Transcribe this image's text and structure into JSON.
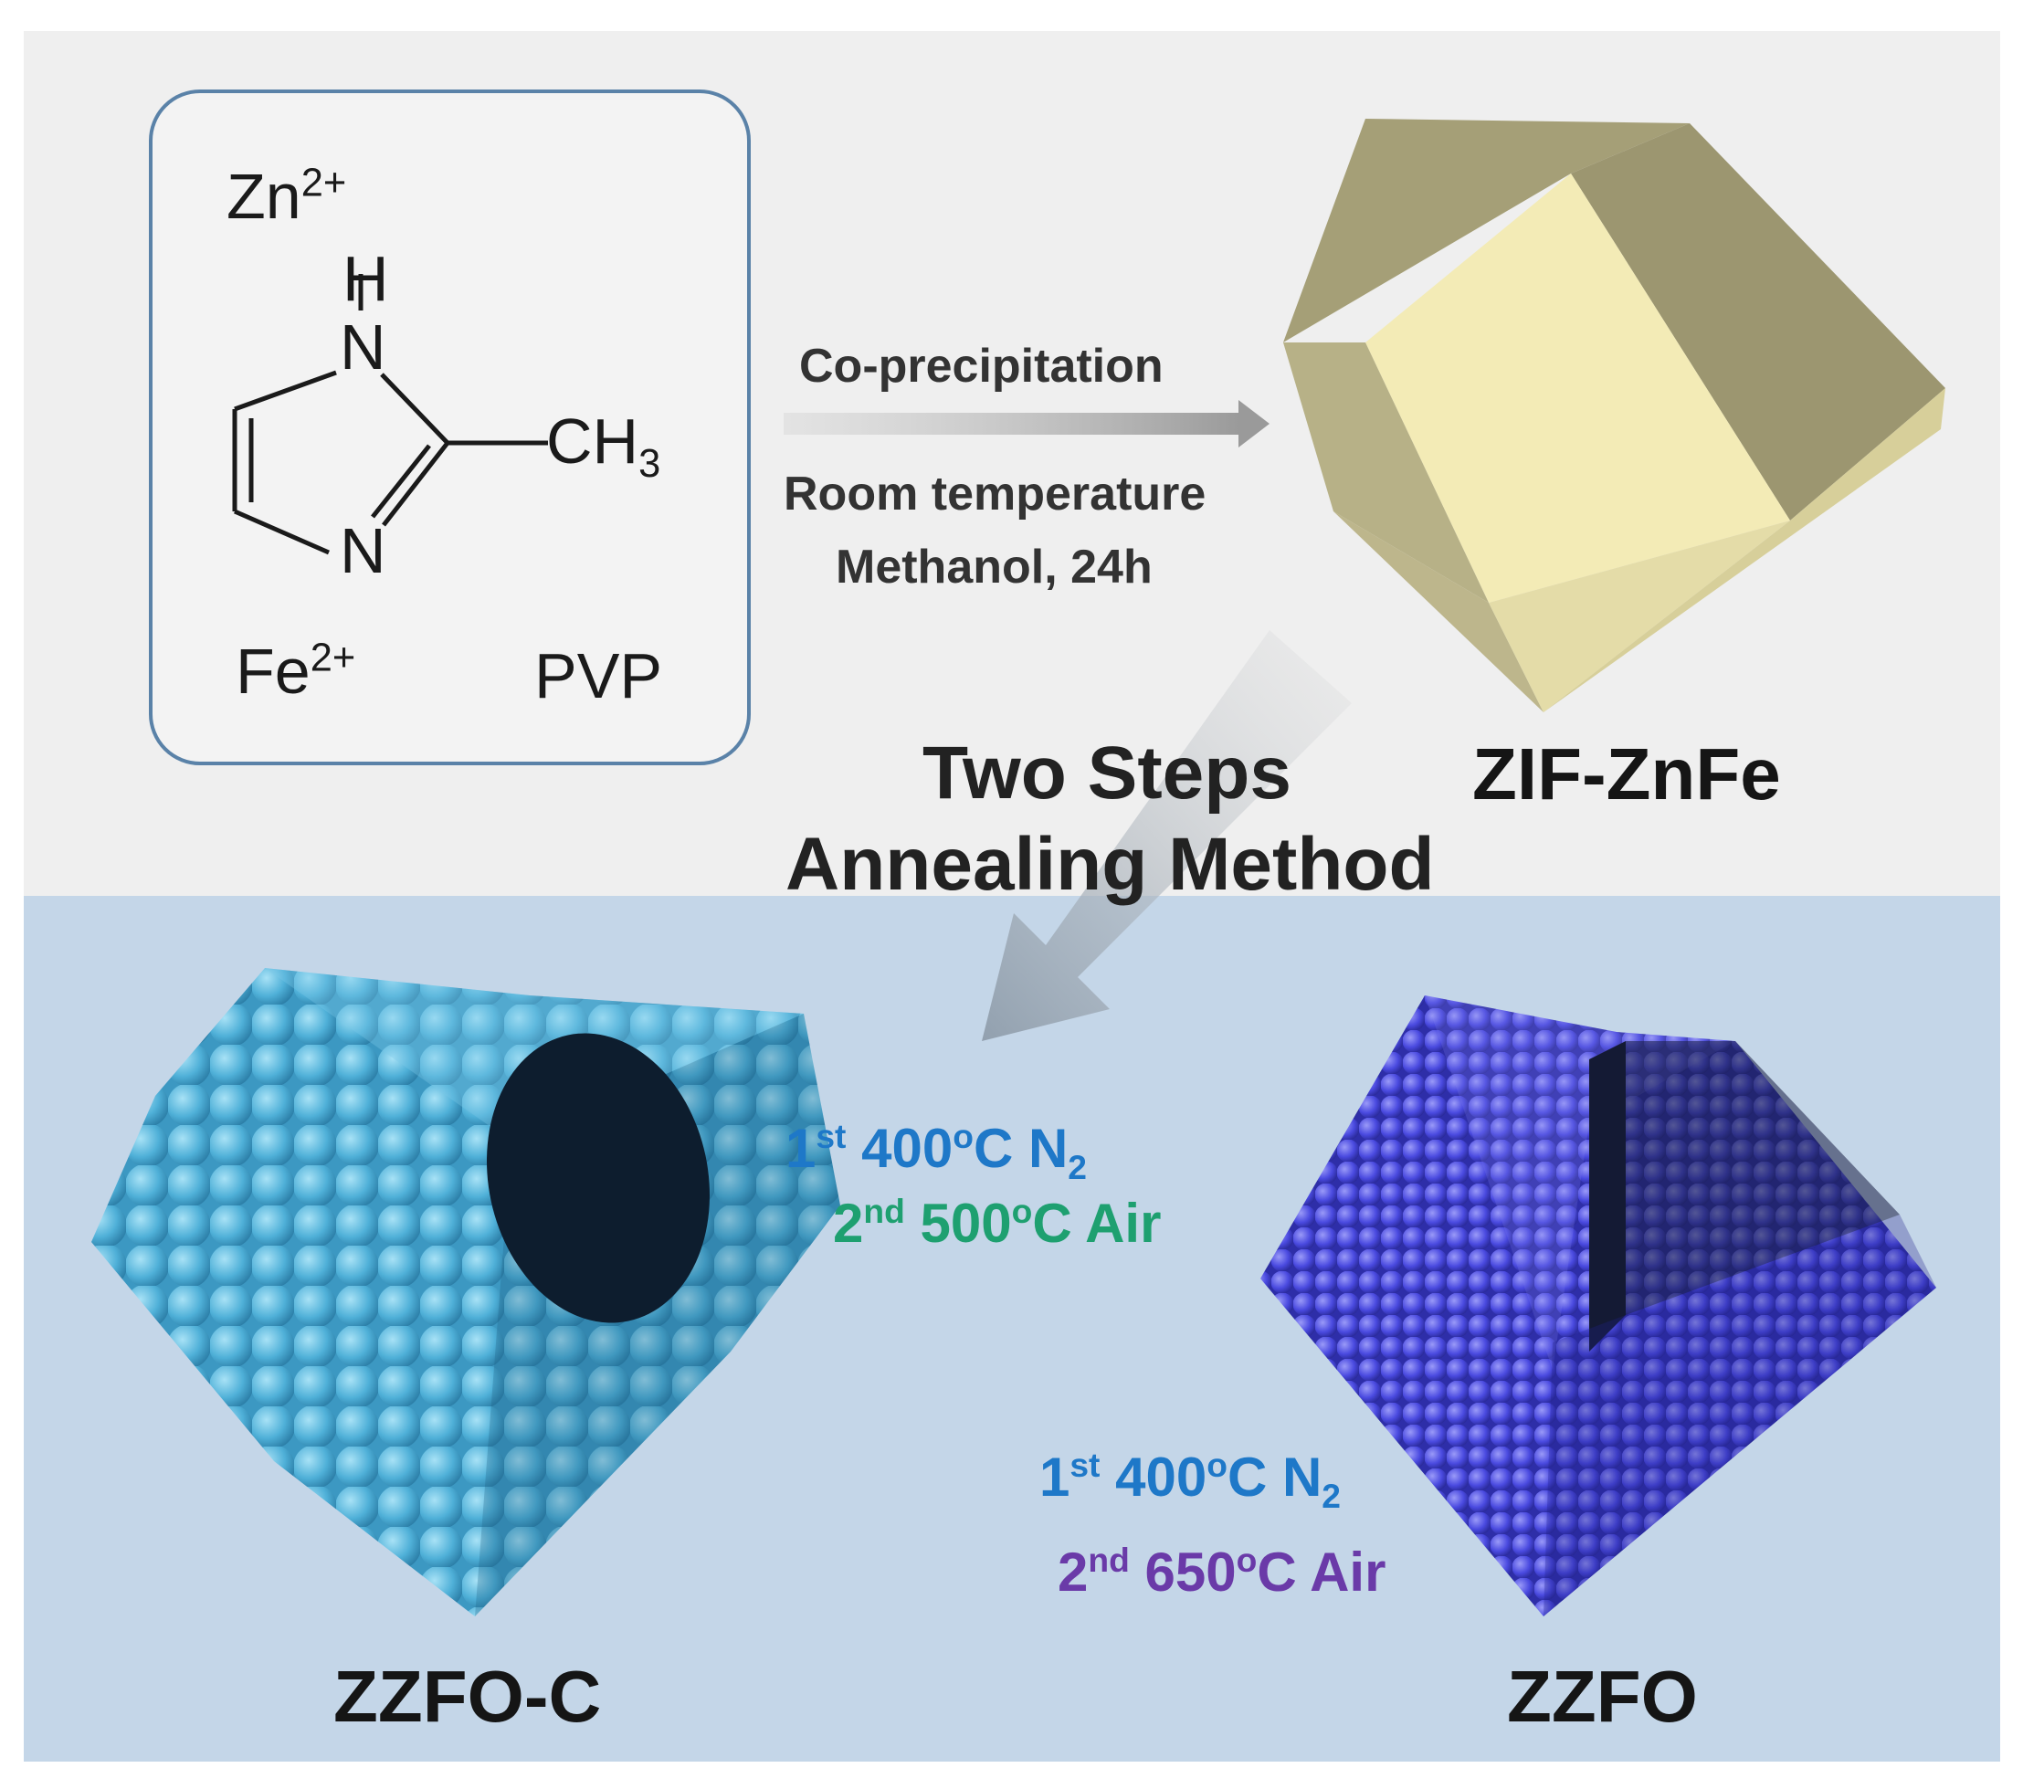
{
  "reactants": {
    "zn": {
      "symbol": "Zn",
      "charge": "2+"
    },
    "h_atom": "H",
    "n_top": "N",
    "n_bottom": "N",
    "methyl": {
      "symbol": "CH",
      "subscript": "3"
    },
    "fe": {
      "symbol": "Fe",
      "charge": "2+"
    },
    "pvp": "PVP"
  },
  "process1": {
    "above": "Co-precipitation",
    "below_line1": "Room temperature",
    "below_line2": "Methanol, 24h"
  },
  "process2": {
    "line1": "Two Steps",
    "line2": "Annealing Method"
  },
  "products": {
    "zif": "ZIF-ZnFe",
    "zzfo_c": "ZZFO-C",
    "zzfo": "ZZFO"
  },
  "conditions_c": {
    "step1": {
      "ord": "1",
      "sup": "st",
      "text": " 400",
      "unit": "o",
      "rest": "C N",
      "sub": "2"
    },
    "step2": {
      "ord": "2",
      "sup": "nd",
      "text": " 500",
      "unit": "o",
      "rest": "C Air"
    }
  },
  "conditions_zzfo": {
    "step1": {
      "ord": "1",
      "sup": "st",
      "text": " 400",
      "unit": "o",
      "rest": "C N",
      "sub": "2"
    },
    "step2": {
      "ord": "2",
      "sup": "nd",
      "text": " 650",
      "unit": "o",
      "rest": "C Air"
    }
  },
  "colors": {
    "top_bg": "#efefef",
    "bottom_bg": "#c4d6e8",
    "box_border": "#5a82a8",
    "step1_blue": "#1e78c8",
    "step2_green": "#1ea070",
    "step2_purple": "#6a3aa8",
    "zzfo_c_sphere": "#4fb0d8",
    "zzfo_sphere": "#4a4ae0",
    "zif_face_light": "#f2eab5",
    "zif_face_dark": "#a8a27a"
  }
}
